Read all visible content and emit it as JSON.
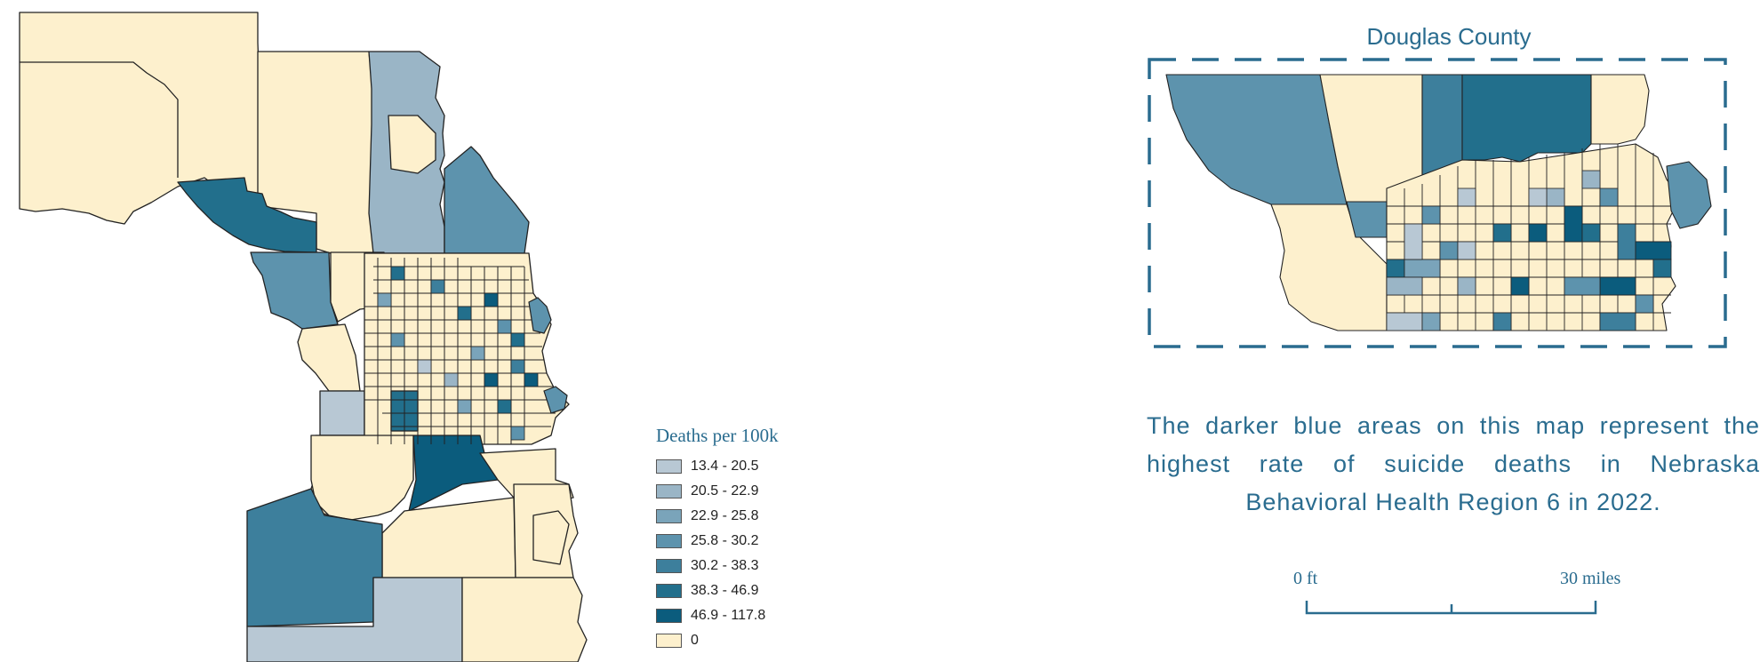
{
  "inset": {
    "title": "Douglas County"
  },
  "legend": {
    "title": "Deaths per 100k",
    "items": [
      {
        "label": "13.4 - 20.5",
        "color": "#b8c8d4"
      },
      {
        "label": "20.5 - 22.9",
        "color": "#9ab5c6"
      },
      {
        "label": "22.9 - 25.8",
        "color": "#7aa4ba"
      },
      {
        "label": "25.8 - 30.2",
        "color": "#5d93ad"
      },
      {
        "label": "30.2 - 38.3",
        "color": "#3d7f9c"
      },
      {
        "label": "38.3 - 46.9",
        "color": "#226f8c"
      },
      {
        "label": "46.9 - 117.8",
        "color": "#0b5c7d"
      },
      {
        "label": "0",
        "color": "#fdf0cd"
      }
    ]
  },
  "description": "The darker blue areas on this map represent the highest rate of suicide deaths in Nebraska Behavioral Health Region 6 in 2022.",
  "scale_bar": {
    "start_label": "0 ft",
    "end_label": "30 miles"
  },
  "colors": {
    "accent": "#2a6c8f",
    "zero": "#fdf0cd",
    "border": "#222222"
  }
}
